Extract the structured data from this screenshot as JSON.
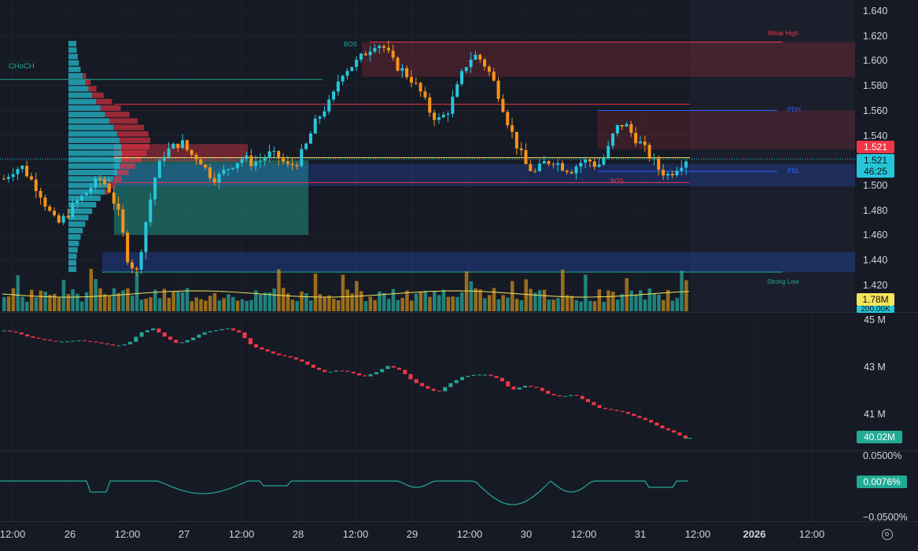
{
  "price_axis": [
    "1.640",
    "1.620",
    "1.600",
    "1.580",
    "1.560",
    "1.540",
    "1.520",
    "1.500",
    "1.480",
    "1.460",
    "1.440",
    "1.420"
  ],
  "badges": {
    "last_price": "1.521",
    "close_price": "1.521",
    "countdown": "46:25",
    "volume": "1.78M",
    "volume_ma": "200.00K",
    "oi": "40.02M",
    "funding": "0.0076%"
  },
  "oi_axis": [
    "45 M",
    "43 M",
    "41 M"
  ],
  "funding_axis": [
    "0.0500%",
    "0.0076%",
    "−0.0500%"
  ],
  "time_axis": [
    "12:00",
    "26",
    "12:00",
    "27",
    "12:00",
    "28",
    "12:00",
    "29",
    "12:00",
    "30",
    "12:00",
    "31",
    "12:00",
    "2026",
    "12:00"
  ],
  "annotations": {
    "choch": "CHoCH",
    "bos_top": "BOS",
    "bos_mid": "BOS",
    "weak_high": "Weak High",
    "pdh": "PDH",
    "pdl": "PDL",
    "strong_low": "Strong Low"
  },
  "colors": {
    "bg": "#161a25",
    "up": "#26c6da",
    "down": "#f7931a",
    "oi_up": "#22ab94",
    "oi_down": "#f23645",
    "ma": "#f5e55c",
    "pdh": "#2962ff",
    "supply": "#f23645"
  },
  "chart_data": [
    {
      "type": "candlestick",
      "xlabel": "",
      "ylabel": "",
      "ylim": [
        1.41,
        1.645
      ],
      "x_ticks": [
        "12:00",
        "26",
        "12:00",
        "27",
        "12:00",
        "28",
        "12:00",
        "29",
        "12:00",
        "30",
        "12:00",
        "31",
        "12:00",
        "2026",
        "12:00"
      ],
      "y_ticks": [
        1.64,
        1.62,
        1.6,
        1.58,
        1.56,
        1.54,
        1.52,
        1.5,
        1.48,
        1.46,
        1.44,
        1.42
      ],
      "close_path": [
        1.505,
        1.512,
        1.515,
        1.505,
        1.495,
        1.48,
        1.468,
        1.475,
        1.485,
        1.492,
        1.5,
        1.505,
        1.495,
        1.475,
        1.44,
        1.43,
        1.47,
        1.505,
        1.525,
        1.53,
        1.535,
        1.525,
        1.522,
        1.51,
        1.505,
        1.512,
        1.518,
        1.522,
        1.518,
        1.52,
        1.525,
        1.522,
        1.515,
        1.518,
        1.53,
        1.548,
        1.56,
        1.568,
        1.59,
        1.595,
        1.6,
        1.608,
        1.615,
        1.61,
        1.598,
        1.592,
        1.585,
        1.575,
        1.56,
        1.552,
        1.558,
        1.575,
        1.595,
        1.605,
        1.6,
        1.588,
        1.57,
        1.548,
        1.53,
        1.515,
        1.51,
        1.518,
        1.52,
        1.515,
        1.512,
        1.518,
        1.52,
        1.515,
        1.525,
        1.545,
        1.55,
        1.54,
        1.532,
        1.522,
        1.512,
        1.508,
        1.515,
        1.521
      ],
      "last": 1.521,
      "levels": {
        "weak_high": 1.615,
        "pdh": 1.56,
        "pdl": 1.511,
        "strong_low": 1.43,
        "bos": 1.502
      }
    },
    {
      "type": "bar",
      "title": "Volume",
      "last": "1.78M",
      "ma": "200.00K"
    },
    {
      "type": "candlestick",
      "title": "Open Interest",
      "y_ticks": [
        "45 M",
        "43 M",
        "41 M"
      ],
      "ylim": [
        39.6,
        45.5
      ],
      "path": [
        44.9,
        44.8,
        44.6,
        44.5,
        44.4,
        44.4,
        44.45,
        44.4,
        44.3,
        44.2,
        44.3,
        44.8,
        45.0,
        44.6,
        44.3,
        44.5,
        44.8,
        44.9,
        45.0,
        44.8,
        44.2,
        44.0,
        43.8,
        43.7,
        43.5,
        43.2,
        43.0,
        43.1,
        43.0,
        42.8,
        43.0,
        43.3,
        43.1,
        42.6,
        42.3,
        42.1,
        42.5,
        42.8,
        42.9,
        42.9,
        42.7,
        42.2,
        42.4,
        42.3,
        42.0,
        41.9,
        42.0,
        41.7,
        41.4,
        41.3,
        41.2,
        41.0,
        40.8,
        40.5,
        40.3,
        40.02
      ],
      "last": "40.02M"
    },
    {
      "type": "line",
      "title": "Funding Rate",
      "y_ticks": [
        "0.0500%",
        "0.0076%",
        "-0.0500%"
      ],
      "last": "0.0076%"
    }
  ]
}
